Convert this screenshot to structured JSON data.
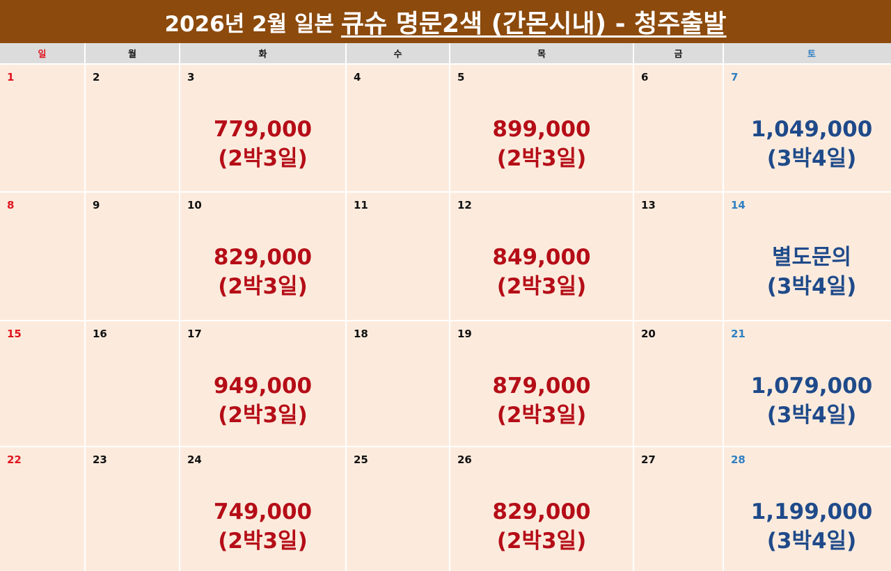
{
  "title": {
    "main": "2026년 2월 일본",
    "highlight": "큐슈 명문2색 (간몬시내) - 청주출발"
  },
  "colors": {
    "banner": "#8c4a0c",
    "cell_bg": "#fcebdd",
    "header_bg": "#dcdcdc",
    "sunday": "#e0141e",
    "saturday": "#2f7fc2",
    "weekday": "#111111",
    "price_red": "#b50d17",
    "price_blue": "#1f4a8a"
  },
  "weekdays": [
    {
      "label": "일",
      "kind": "sun"
    },
    {
      "label": "월",
      "kind": "weekday"
    },
    {
      "label": "화",
      "kind": "weekday"
    },
    {
      "label": "수",
      "kind": "weekday"
    },
    {
      "label": "목",
      "kind": "weekday"
    },
    {
      "label": "금",
      "kind": "weekday"
    },
    {
      "label": "토",
      "kind": "sat"
    }
  ],
  "weeks": [
    [
      {
        "day": "1"
      },
      {
        "day": "2"
      },
      {
        "day": "3",
        "price": "779,000",
        "duration": "(2박3일)",
        "tone": "red"
      },
      {
        "day": "4"
      },
      {
        "day": "5",
        "price": "899,000",
        "duration": "(2박3일)",
        "tone": "red"
      },
      {
        "day": "6"
      },
      {
        "day": "7",
        "price": "1,049,000",
        "duration": "(3박4일)",
        "tone": "blue"
      }
    ],
    [
      {
        "day": "8"
      },
      {
        "day": "9"
      },
      {
        "day": "10",
        "price": "829,000",
        "duration": "(2박3일)",
        "tone": "red"
      },
      {
        "day": "11"
      },
      {
        "day": "12",
        "price": "849,000",
        "duration": "(2박3일)",
        "tone": "red"
      },
      {
        "day": "13"
      },
      {
        "day": "14",
        "price": "별도문의",
        "duration": "(3박4일)",
        "tone": "blue"
      }
    ],
    [
      {
        "day": "15"
      },
      {
        "day": "16"
      },
      {
        "day": "17",
        "price": "949,000",
        "duration": "(2박3일)",
        "tone": "red"
      },
      {
        "day": "18"
      },
      {
        "day": "19",
        "price": "879,000",
        "duration": "(2박3일)",
        "tone": "red"
      },
      {
        "day": "20"
      },
      {
        "day": "21",
        "price": "1,079,000",
        "duration": "(3박4일)",
        "tone": "blue"
      }
    ],
    [
      {
        "day": "22"
      },
      {
        "day": "23"
      },
      {
        "day": "24",
        "price": "749,000",
        "duration": "(2박3일)",
        "tone": "red"
      },
      {
        "day": "25"
      },
      {
        "day": "26",
        "price": "829,000",
        "duration": "(2박3일)",
        "tone": "red"
      },
      {
        "day": "27"
      },
      {
        "day": "28",
        "price": "1,199,000",
        "duration": "(3박4일)",
        "tone": "blue"
      }
    ]
  ]
}
